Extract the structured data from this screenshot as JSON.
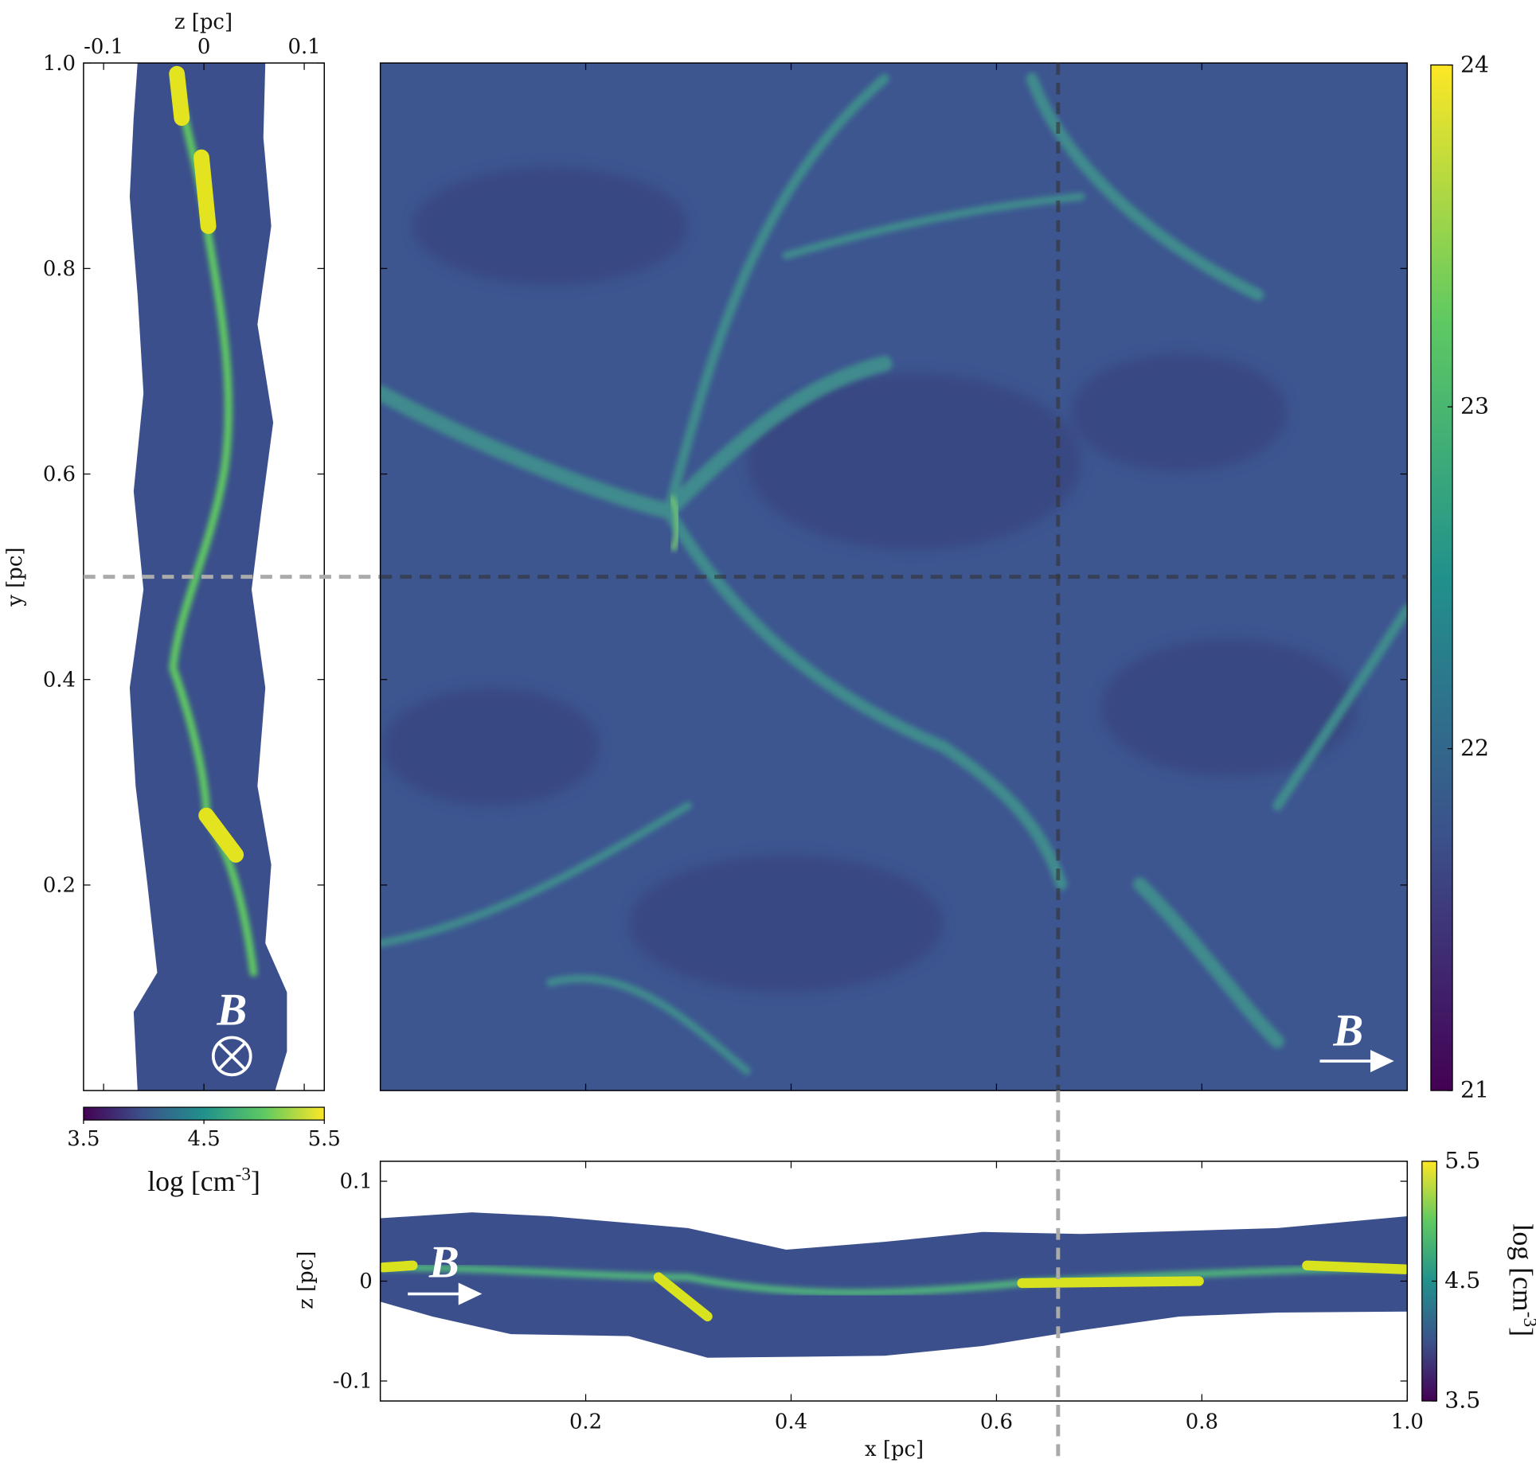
{
  "chart_data": [
    {
      "type": "heatmap",
      "xlabel": "z [pc]",
      "ylabel": "y [pc]",
      "xlim": [
        -0.12,
        0.12
      ],
      "xticks": [
        -0.1,
        0,
        0.1
      ],
      "ylim": [
        0,
        1
      ],
      "yticks": [
        0.2,
        0.4,
        0.6,
        0.8,
        {
          "value": 1,
          "label": "1.0"
        }
      ],
      "crosshair": {
        "y": 0.5
      },
      "annotation": "B",
      "colorbar": {
        "colormap": "viridis",
        "lim": [
          3.5,
          5.5
        ],
        "ticks": [
          3.5,
          4.5,
          5.5
        ],
        "orientation": "horizontal",
        "label": {
          "text": "log [cm",
          "sup": "-3",
          "end": "]"
        }
      }
    },
    {
      "type": "heatmap",
      "xlim": [
        0,
        1
      ],
      "xticks": [
        0.2,
        0.4,
        0.6,
        0.8
      ],
      "ylim": [
        0,
        1
      ],
      "yticks": [
        0.2,
        0.4,
        0.6,
        0.8
      ],
      "crosshair": {
        "x": 0.66,
        "y": 0.5
      },
      "annotation": "B",
      "colorbar": {
        "colormap": "viridis",
        "lim": [
          21,
          24
        ],
        "ticks": [
          21,
          22,
          23,
          24
        ],
        "orientation": "vertical"
      }
    },
    {
      "type": "heatmap",
      "xlabel": "x [pc]",
      "ylabel": "z [pc]",
      "xlim": [
        0,
        1
      ],
      "xticks": [
        0.2,
        0.4,
        0.6,
        0.8,
        {
          "value": 1,
          "label": "1.0"
        }
      ],
      "ylim": [
        -0.12,
        0.12
      ],
      "yticks": [
        -0.1,
        0,
        0.1
      ],
      "crosshair": {
        "x": 0.66
      },
      "annotation": "B",
      "colorbar": {
        "colormap": "viridis",
        "lim": [
          3.5,
          5.5
        ],
        "ticks": [
          3.5,
          4.5,
          5.5
        ],
        "orientation": "vertical",
        "label": {
          "text": "log [cm",
          "sup": "-3",
          "end": "]"
        }
      }
    }
  ]
}
